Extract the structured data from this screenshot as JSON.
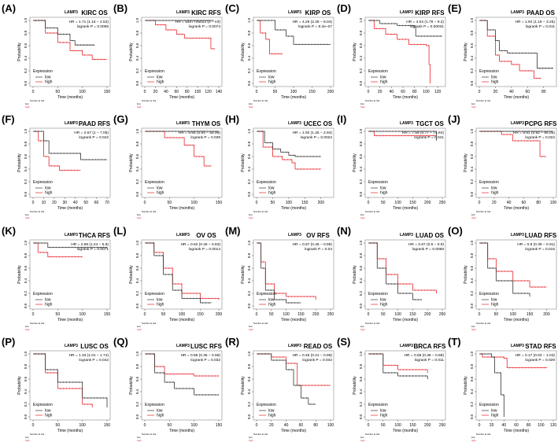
{
  "colors": {
    "low": "#333333",
    "high": "#e8242b",
    "frame": "#888888"
  },
  "common": {
    "gene": "LAMP3",
    "ylabel": "Probability",
    "xlabel": "Time (months)",
    "legend_title": "Expression",
    "legend_low": "low",
    "legend_high": "high",
    "risk_title": "Number at risk",
    "risk_low": "low",
    "risk_high": "high",
    "yticks": [
      "0.0",
      "0.2",
      "0.4",
      "0.6",
      "0.8",
      "1.0"
    ]
  },
  "chart_data": [
    {
      "type": "line",
      "panel": "(A)",
      "title": "KIRC  OS",
      "hr": "HR = 1.71 (1.16 − 2.52)",
      "p": "logrank P = 0.0065",
      "xlim": [
        0,
        150
      ],
      "xticks": [
        0,
        50,
        100,
        150
      ],
      "ylim": [
        0,
        1
      ],
      "series": [
        {
          "name": "low",
          "x": [
            0,
            25,
            50,
            75,
            85,
            125
          ],
          "y": [
            1,
            0.88,
            0.78,
            0.68,
            0.61,
            0.61
          ]
        },
        {
          "name": "high",
          "x": [
            0,
            25,
            50,
            75,
            100,
            110,
            120,
            150
          ],
          "y": [
            1,
            0.8,
            0.65,
            0.52,
            0.45,
            0.45,
            0.38,
            0.38
          ]
        }
      ]
    },
    {
      "type": "line",
      "panel": "(B)",
      "title": "KIRC  RFS",
      "hr": "HR = 5407745023 (0 − Inf)",
      "p": "logrank P = 0.0074",
      "xlim": [
        0,
        140
      ],
      "xticks": [
        0,
        20,
        40,
        60,
        80,
        100,
        120,
        140
      ],
      "ylim": [
        0,
        1
      ],
      "series": [
        {
          "name": "low",
          "x": [
            0,
            130
          ],
          "y": [
            1,
            1
          ]
        },
        {
          "name": "high",
          "x": [
            0,
            20,
            40,
            60,
            75,
            125,
            125,
            133
          ],
          "y": [
            1,
            0.93,
            0.85,
            0.78,
            0.72,
            0.72,
            0.55,
            0.55
          ]
        }
      ]
    },
    {
      "type": "line",
      "panel": "(C)",
      "title": "KIRP  OS",
      "hr": "HR = 4.29 (2.28 − 8.04)",
      "p": "logrank P = 8.4e−07",
      "xlim": [
        0,
        200
      ],
      "xticks": [
        0,
        50,
        100,
        150,
        200
      ],
      "ylim": [
        0,
        1
      ],
      "series": [
        {
          "name": "low",
          "x": [
            0,
            50,
            80,
            100,
            200
          ],
          "y": [
            1,
            0.85,
            0.75,
            0.62,
            0.62
          ]
        },
        {
          "name": "high",
          "x": [
            0,
            10,
            25,
            35,
            70
          ],
          "y": [
            1,
            0.8,
            0.7,
            0.47,
            0.47
          ]
        }
      ]
    },
    {
      "type": "line",
      "panel": "(D)",
      "title": "KIRP  RFS",
      "hr": "HR = 4.04 (1.78 − 9.2)",
      "p": "logrank P = 0.00031",
      "xlim": [
        0,
        128
      ],
      "xticks": [
        0,
        20,
        40,
        60,
        80,
        100,
        120
      ],
      "ylim": [
        0,
        1
      ],
      "series": [
        {
          "name": "low",
          "x": [
            0,
            20,
            50,
            80,
            82,
            128
          ],
          "y": [
            1,
            0.95,
            0.92,
            0.9,
            0.75,
            0.75
          ]
        },
        {
          "name": "high",
          "x": [
            0,
            10,
            30,
            50,
            70,
            100,
            105,
            107
          ],
          "y": [
            1,
            0.87,
            0.78,
            0.7,
            0.62,
            0.6,
            0.3,
            0
          ]
        }
      ]
    },
    {
      "type": "line",
      "panel": "(E)",
      "title": "PAAD  OS",
      "hr": "HR = 1.94 (1.16 − 3.25)",
      "p": "logrank P = 0.011",
      "xlim": [
        0,
        92
      ],
      "xticks": [
        0,
        20,
        40,
        60,
        80
      ],
      "ylim": [
        0,
        1
      ],
      "series": [
        {
          "name": "low",
          "x": [
            0,
            10,
            20,
            25,
            35,
            72,
            72,
            92
          ],
          "y": [
            1,
            0.85,
            0.68,
            0.52,
            0.48,
            0.48,
            0.24,
            0.24
          ]
        },
        {
          "name": "high",
          "x": [
            0,
            10,
            20,
            25,
            40,
            50,
            67,
            68,
            77
          ],
          "y": [
            1,
            0.75,
            0.45,
            0.35,
            0.3,
            0.2,
            0.2,
            0.08,
            0.08
          ]
        }
      ]
    },
    {
      "type": "line",
      "panel": "(F)",
      "title": "PAAD  RFS",
      "hr": "HR = 2.67 (1 − 7.05)",
      "p": "logrank P = 0.042",
      "xlim": [
        0,
        70
      ],
      "xticks": [
        0,
        10,
        20,
        30,
        40,
        50,
        60,
        70
      ],
      "ylim": [
        0,
        1
      ],
      "series": [
        {
          "name": "low",
          "x": [
            0,
            10,
            15,
            45,
            45,
            70
          ],
          "y": [
            1,
            0.85,
            0.65,
            0.65,
            0.55,
            0.55
          ]
        },
        {
          "name": "high",
          "x": [
            0,
            5,
            10,
            15,
            25,
            45
          ],
          "y": [
            1,
            0.85,
            0.6,
            0.45,
            0.38,
            0.38
          ]
        }
      ]
    },
    {
      "type": "line",
      "panel": "(G)",
      "title": "THYM  OS",
      "hr": "HR = 6.66 (0.84 − 55.99)",
      "p": "logrank P = 0.039",
      "xlim": [
        0,
        150
      ],
      "xticks": [
        0,
        50,
        100,
        150
      ],
      "ylim": [
        0,
        1
      ],
      "series": [
        {
          "name": "low",
          "x": [
            0,
            150
          ],
          "y": [
            1,
            1
          ]
        },
        {
          "name": "high",
          "x": [
            0,
            40,
            80,
            100,
            120,
            135
          ],
          "y": [
            1,
            0.9,
            0.78,
            0.6,
            0.45,
            0.45
          ]
        }
      ]
    },
    {
      "type": "line",
      "panel": "(H)",
      "title": "UCEC  OS",
      "hr": "HR = 1.92 (1.25 − 2.94)",
      "p": "logrank P = 0.0022",
      "xlim": [
        0,
        230
      ],
      "xticks": [
        0,
        50,
        100,
        150,
        200
      ],
      "ylim": [
        0,
        1
      ],
      "series": [
        {
          "name": "low",
          "x": [
            0,
            25,
            50,
            75,
            100,
            120,
            200
          ],
          "y": [
            1,
            0.82,
            0.72,
            0.67,
            0.62,
            0.6,
            0.6
          ]
        },
        {
          "name": "high",
          "x": [
            0,
            20,
            50,
            80,
            110,
            120,
            200
          ],
          "y": [
            1,
            0.75,
            0.6,
            0.55,
            0.5,
            0.4,
            0.4
          ]
        }
      ]
    },
    {
      "type": "line",
      "panel": "(I)",
      "title": "TGCT  OS",
      "hr": "HR = 7.59 (0.77 − 74.84)",
      "p": "logrank P = 0.041",
      "xlim": [
        0,
        250
      ],
      "xticks": [
        0,
        50,
        100,
        150,
        200,
        250
      ],
      "ylim": [
        0,
        1
      ],
      "series": [
        {
          "name": "low",
          "x": [
            0,
            230,
            230
          ],
          "y": [
            1,
            1,
            0.85
          ]
        },
        {
          "name": "high",
          "x": [
            0,
            20,
            230
          ],
          "y": [
            1,
            0.93,
            0.93
          ]
        }
      ]
    },
    {
      "type": "line",
      "panel": "(J)",
      "title": "PCPG  RFS",
      "hr": "HR = 8.81 (0.92 − 85.05)",
      "p": "logrank P = 0.022",
      "xlim": [
        0,
        100
      ],
      "xticks": [
        0,
        20,
        40,
        60,
        80,
        100
      ],
      "ylim": [
        0,
        1
      ],
      "series": [
        {
          "name": "low",
          "x": [
            0,
            100
          ],
          "y": [
            1,
            1
          ]
        },
        {
          "name": "high",
          "x": [
            0,
            30,
            45,
            80,
            82,
            90
          ],
          "y": [
            1,
            0.95,
            0.85,
            0.85,
            0.6,
            0.6
          ]
        }
      ]
    },
    {
      "type": "line",
      "panel": "(K)",
      "title": "THCA  RFS",
      "hr": "HR = 2.68 (1.24 − 5.8)",
      "p": "logrank P = 0.0071",
      "xlim": [
        0,
        150
      ],
      "xticks": [
        0,
        50,
        100,
        150
      ],
      "ylim": [
        0,
        1
      ],
      "series": [
        {
          "name": "low",
          "x": [
            0,
            30,
            150
          ],
          "y": [
            1,
            0.93,
            0.92
          ]
        },
        {
          "name": "high",
          "x": [
            0,
            10,
            30,
            100
          ],
          "y": [
            1,
            0.85,
            0.78,
            0.78
          ]
        }
      ]
    },
    {
      "type": "line",
      "panel": "(L)",
      "title": "OV  OS",
      "hr": "HR = 0.62 (0.46 − 0.83)",
      "p": "logrank P = 0.0014",
      "xlim": [
        0,
        200
      ],
      "xticks": [
        0,
        50,
        100,
        150,
        200
      ],
      "ylim": [
        0,
        1
      ],
      "series": [
        {
          "name": "low",
          "x": [
            0,
            25,
            50,
            75,
            100,
            150,
            180
          ],
          "y": [
            1,
            0.8,
            0.5,
            0.25,
            0.12,
            0.05,
            0.05
          ]
        },
        {
          "name": "high",
          "x": [
            0,
            25,
            50,
            75,
            100,
            150,
            200
          ],
          "y": [
            1,
            0.85,
            0.6,
            0.35,
            0.2,
            0.12,
            0.1
          ]
        }
      ]
    },
    {
      "type": "line",
      "panel": "(M)",
      "title": "OV  RFS",
      "hr": "HR = 0.67 (0.45 − 0.98)",
      "p": "logrank P = 0.04",
      "xlim": [
        0,
        250
      ],
      "xticks": [
        0,
        50,
        100,
        150,
        200,
        250
      ],
      "ylim": [
        0,
        1
      ],
      "series": [
        {
          "name": "low",
          "x": [
            0,
            15,
            30,
            60,
            100,
            150
          ],
          "y": [
            1,
            0.6,
            0.25,
            0.1,
            0.05,
            0.05
          ]
        },
        {
          "name": "high",
          "x": [
            0,
            15,
            30,
            60,
            100,
            200
          ],
          "y": [
            1,
            0.7,
            0.35,
            0.2,
            0.15,
            0.1
          ]
        }
      ]
    },
    {
      "type": "line",
      "panel": "(N)",
      "title": "LUAD  OS",
      "hr": "HR = 0.67 (0.5 − 0.9)",
      "p": "logrank P = 0.0068",
      "xlim": [
        0,
        250
      ],
      "xticks": [
        0,
        50,
        100,
        150,
        200,
        250
      ],
      "ylim": [
        0,
        1
      ],
      "series": [
        {
          "name": "low",
          "x": [
            0,
            30,
            60,
            100,
            150,
            180
          ],
          "y": [
            1,
            0.6,
            0.35,
            0.2,
            0.1,
            0.1
          ]
        },
        {
          "name": "high",
          "x": [
            0,
            30,
            60,
            100,
            150,
            230
          ],
          "y": [
            1,
            0.75,
            0.5,
            0.35,
            0.25,
            0.2
          ]
        }
      ]
    },
    {
      "type": "line",
      "panel": "(O)",
      "title": "LUAD  RFS",
      "hr": "HR = 0.6 (0.39 − 0.91)",
      "p": "logrank P = 0.015",
      "xlim": [
        0,
        220
      ],
      "xticks": [
        0,
        50,
        100,
        150,
        200
      ],
      "ylim": [
        0,
        1
      ],
      "series": [
        {
          "name": "low",
          "x": [
            0,
            25,
            50,
            100,
            150
          ],
          "y": [
            1,
            0.6,
            0.4,
            0.2,
            0.15
          ]
        },
        {
          "name": "high",
          "x": [
            0,
            25,
            50,
            100,
            150,
            200
          ],
          "y": [
            1,
            0.75,
            0.55,
            0.4,
            0.3,
            0.3
          ]
        }
      ]
    },
    {
      "type": "line",
      "panel": "(P)",
      "title": "LUSC  OS",
      "hr": "HR = 1.33 (1.01 − 1.74)",
      "p": "logrank P = 0.042",
      "xlim": [
        0,
        150
      ],
      "xticks": [
        0,
        50,
        100,
        150
      ],
      "ylim": [
        0,
        1
      ],
      "series": [
        {
          "name": "low",
          "x": [
            0,
            25,
            50,
            100,
            150
          ],
          "y": [
            1,
            0.75,
            0.55,
            0.3,
            0.15
          ]
        },
        {
          "name": "high",
          "x": [
            0,
            25,
            50,
            100,
            120
          ],
          "y": [
            1,
            0.7,
            0.45,
            0.2,
            0.15
          ]
        }
      ]
    },
    {
      "type": "line",
      "panel": "(Q)",
      "title": "LUSC  RFS",
      "hr": "HR = 0.58 (0.35 − 0.96)",
      "p": "logrank P = 0.032",
      "xlim": [
        0,
        150
      ],
      "xticks": [
        0,
        50,
        100,
        150
      ],
      "ylim": [
        0,
        1
      ],
      "series": [
        {
          "name": "low",
          "x": [
            0,
            20,
            40,
            60,
            100,
            150
          ],
          "y": [
            1,
            0.7,
            0.55,
            0.45,
            0.35,
            0.35
          ]
        },
        {
          "name": "high",
          "x": [
            0,
            20,
            40,
            100,
            150
          ],
          "y": [
            1,
            0.8,
            0.68,
            0.65,
            0.65
          ]
        }
      ]
    },
    {
      "type": "line",
      "panel": "(R)",
      "title": "READ  OS",
      "hr": "HR = 0.45 (0.21 − 0.98)",
      "p": "logrank P = 0.042",
      "xlim": [
        0,
        100
      ],
      "xticks": [
        0,
        20,
        40,
        60,
        80,
        100
      ],
      "ylim": [
        0,
        1
      ],
      "series": [
        {
          "name": "low",
          "x": [
            0,
            20,
            40,
            50,
            60,
            70,
            80
          ],
          "y": [
            1,
            0.9,
            0.75,
            0.5,
            0.3,
            0.2,
            0.2
          ]
        },
        {
          "name": "high",
          "x": [
            0,
            20,
            40,
            55,
            100
          ],
          "y": [
            1,
            0.95,
            0.85,
            0.5,
            0.5
          ]
        }
      ]
    },
    {
      "type": "line",
      "panel": "(S)",
      "title": "BRCA  RFS",
      "hr": "HR = 0.58 (0.38 − 0.88)",
      "p": "logrank P = 0.011",
      "xlim": [
        0,
        250
      ],
      "xticks": [
        0,
        50,
        100,
        150,
        200,
        250
      ],
      "ylim": [
        0,
        1
      ],
      "series": [
        {
          "name": "low",
          "x": [
            0,
            50,
            100,
            200
          ],
          "y": [
            1,
            0.7,
            0.65,
            0.6
          ]
        },
        {
          "name": "high",
          "x": [
            0,
            50,
            100,
            200
          ],
          "y": [
            1,
            0.82,
            0.75,
            0.7
          ]
        }
      ]
    },
    {
      "type": "line",
      "panel": "(T)",
      "title": "STAD  RFS",
      "hr": "HR = 0.17 (0.03 − 1.03)",
      "p": "logrank P = 0.029",
      "xlim": [
        0,
        120
      ],
      "xticks": [
        0,
        20,
        40,
        60,
        80,
        100,
        120
      ],
      "ylim": [
        0,
        1
      ],
      "series": [
        {
          "name": "low",
          "x": [
            0,
            20,
            25,
            35,
            40
          ],
          "y": [
            1,
            0.95,
            0.7,
            0.35,
            0
          ]
        },
        {
          "name": "high",
          "x": [
            0,
            5,
            40,
            45,
            110
          ],
          "y": [
            1,
            0.95,
            0.93,
            0.78,
            0.78
          ]
        }
      ]
    }
  ]
}
